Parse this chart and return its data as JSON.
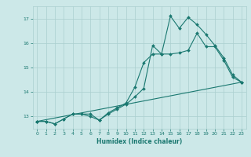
{
  "title": "",
  "xlabel": "Humidex (Indice chaleur)",
  "bg_color": "#cce8e8",
  "grid_color": "#aacfcf",
  "line_color": "#1a7870",
  "xlim": [
    -0.5,
    23.5
  ],
  "ylim": [
    12.5,
    17.5
  ],
  "yticks": [
    13,
    14,
    15,
    16,
    17
  ],
  "xticks": [
    0,
    1,
    2,
    3,
    4,
    5,
    6,
    7,
    8,
    9,
    10,
    11,
    12,
    13,
    14,
    15,
    16,
    17,
    18,
    19,
    20,
    21,
    22,
    23
  ],
  "series1_x": [
    0,
    1,
    2,
    3,
    4,
    5,
    6,
    7,
    8,
    9,
    10,
    11,
    12,
    13,
    14,
    15,
    16,
    17,
    18,
    19,
    20,
    21,
    22,
    23
  ],
  "series1_y": [
    12.8,
    12.8,
    12.7,
    12.9,
    13.1,
    13.1,
    13.1,
    12.85,
    13.15,
    13.35,
    13.55,
    14.2,
    15.2,
    15.55,
    15.55,
    17.1,
    16.6,
    17.05,
    16.75,
    16.35,
    15.9,
    15.4,
    14.7,
    14.4
  ],
  "series2_x": [
    0,
    1,
    2,
    3,
    4,
    5,
    6,
    7,
    8,
    9,
    10,
    11,
    12,
    13,
    14,
    15,
    16,
    17,
    18,
    19,
    20,
    21,
    22,
    23
  ],
  "series2_y": [
    12.8,
    12.8,
    12.7,
    12.9,
    13.1,
    13.1,
    13.0,
    12.85,
    13.1,
    13.3,
    13.5,
    13.8,
    14.15,
    15.9,
    15.55,
    15.55,
    15.6,
    15.7,
    16.4,
    15.85,
    15.85,
    15.3,
    14.6,
    14.4
  ],
  "series3_x": [
    0,
    23
  ],
  "series3_y": [
    12.8,
    14.4
  ]
}
